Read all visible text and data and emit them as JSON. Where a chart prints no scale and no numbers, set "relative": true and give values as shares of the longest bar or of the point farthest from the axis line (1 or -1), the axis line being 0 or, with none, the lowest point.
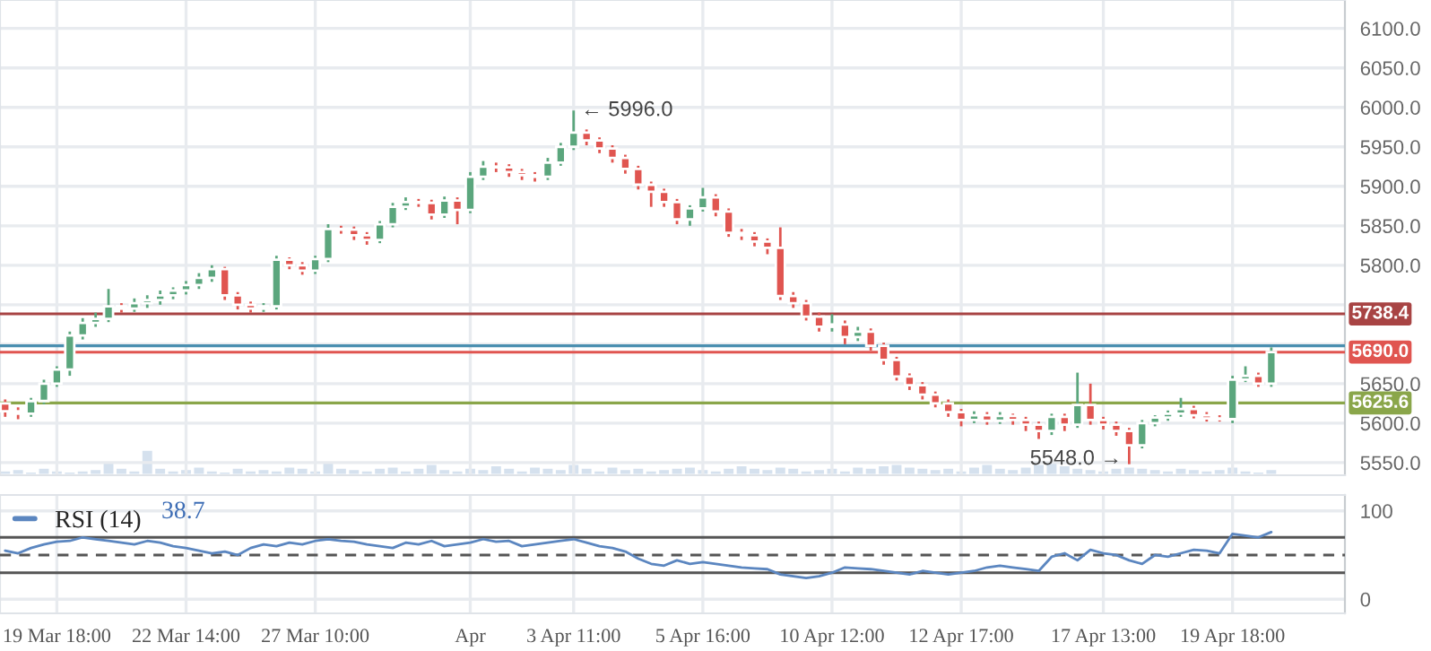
{
  "chart_data": [
    {
      "type": "candlestick",
      "categories": [
        null,
        null,
        null,
        null,
        null,
        null,
        null,
        null,
        null,
        null,
        null,
        null,
        null,
        null,
        null,
        null,
        null,
        null,
        null,
        null,
        null,
        null,
        null,
        null,
        null,
        null,
        null,
        null,
        null,
        null,
        null,
        null,
        null,
        null,
        null,
        null,
        null,
        null,
        null,
        null,
        null,
        null,
        null,
        null,
        null,
        null,
        null,
        null,
        null,
        null,
        null,
        null,
        null,
        null,
        null,
        null,
        null,
        null,
        null,
        null,
        null,
        null,
        null,
        null,
        null,
        null,
        null,
        null,
        null,
        null,
        null,
        null,
        null,
        null,
        null,
        null,
        null,
        null,
        null,
        null,
        null,
        null,
        null,
        null,
        null,
        null,
        null,
        null,
        null,
        null,
        null,
        null,
        null,
        null,
        null,
        null,
        null,
        null,
        null
      ],
      "ohlc": [
        [
          5625,
          5630,
          5608,
          5615
        ],
        [
          5615,
          5620,
          5605,
          5612
        ],
        [
          5612,
          5632,
          5608,
          5628
        ],
        [
          5628,
          5655,
          5624,
          5650
        ],
        [
          5650,
          5672,
          5646,
          5668
        ],
        [
          5668,
          5716,
          5660,
          5711
        ],
        [
          5711,
          5733,
          5706,
          5727
        ],
        [
          5727,
          5740,
          5722,
          5732
        ],
        [
          5732,
          5770,
          5728,
          5748
        ],
        [
          5748,
          5752,
          5740,
          5745
        ],
        [
          5745,
          5758,
          5741,
          5752
        ],
        [
          5752,
          5762,
          5746,
          5756
        ],
        [
          5756,
          5768,
          5750,
          5762
        ],
        [
          5762,
          5772,
          5757,
          5768
        ],
        [
          5768,
          5780,
          5763,
          5775
        ],
        [
          5775,
          5790,
          5770,
          5784
        ],
        [
          5784,
          5800,
          5779,
          5795
        ],
        [
          5795,
          5798,
          5756,
          5762
        ],
        [
          5762,
          5766,
          5744,
          5750
        ],
        [
          5750,
          5754,
          5740,
          5745
        ],
        [
          5745,
          5752,
          5741,
          5748
        ],
        [
          5748,
          5812,
          5744,
          5807
        ],
        [
          5807,
          5810,
          5795,
          5800
        ],
        [
          5800,
          5804,
          5788,
          5793
        ],
        [
          5793,
          5812,
          5789,
          5808
        ],
        [
          5808,
          5852,
          5804,
          5846
        ],
        [
          5846,
          5850,
          5840,
          5845
        ],
        [
          5845,
          5849,
          5832,
          5838
        ],
        [
          5838,
          5842,
          5826,
          5832
        ],
        [
          5832,
          5856,
          5828,
          5852
        ],
        [
          5852,
          5879,
          5848,
          5874
        ],
        [
          5874,
          5886,
          5870,
          5880
        ],
        [
          5880,
          5884,
          5874,
          5879
        ],
        [
          5879,
          5883,
          5858,
          5864
        ],
        [
          5864,
          5887,
          5860,
          5882
        ],
        [
          5882,
          5886,
          5852,
          5870
        ],
        [
          5870,
          5918,
          5866,
          5912
        ],
        [
          5912,
          5932,
          5908,
          5925
        ],
        [
          5925,
          5930,
          5918,
          5924
        ],
        [
          5924,
          5928,
          5912,
          5918
        ],
        [
          5918,
          5922,
          5908,
          5914
        ],
        [
          5914,
          5918,
          5906,
          5912
        ],
        [
          5912,
          5936,
          5908,
          5930
        ],
        [
          5930,
          5955,
          5926,
          5950
        ],
        [
          5950,
          5996,
          5946,
          5968
        ],
        [
          5968,
          5972,
          5952,
          5958
        ],
        [
          5958,
          5962,
          5942,
          5948
        ],
        [
          5948,
          5952,
          5930,
          5936
        ],
        [
          5936,
          5940,
          5916,
          5922
        ],
        [
          5922,
          5926,
          5896,
          5902
        ],
        [
          5902,
          5906,
          5874,
          5893
        ],
        [
          5893,
          5897,
          5874,
          5880
        ],
        [
          5880,
          5884,
          5852,
          5858
        ],
        [
          5858,
          5876,
          5850,
          5872
        ],
        [
          5872,
          5898,
          5868,
          5886
        ],
        [
          5886,
          5890,
          5862,
          5868
        ],
        [
          5868,
          5872,
          5836,
          5841
        ],
        [
          5841,
          5846,
          5832,
          5838
        ],
        [
          5838,
          5842,
          5824,
          5830
        ],
        [
          5830,
          5834,
          5814,
          5822
        ],
        [
          5822,
          5848,
          5756,
          5761
        ],
        [
          5761,
          5766,
          5746,
          5752
        ],
        [
          5752,
          5756,
          5730,
          5735
        ],
        [
          5735,
          5740,
          5716,
          5722
        ],
        [
          5722,
          5738,
          5716,
          5725
        ],
        [
          5725,
          5730,
          5700,
          5709
        ],
        [
          5709,
          5722,
          5704,
          5716
        ],
        [
          5716,
          5720,
          5692,
          5698
        ],
        [
          5698,
          5702,
          5674,
          5680
        ],
        [
          5680,
          5684,
          5654,
          5659
        ],
        [
          5659,
          5663,
          5642,
          5648
        ],
        [
          5648,
          5652,
          5630,
          5636
        ],
        [
          5636,
          5640,
          5620,
          5625
        ],
        [
          5625,
          5630,
          5608,
          5614
        ],
        [
          5614,
          5618,
          5596,
          5604
        ],
        [
          5604,
          5615,
          5600,
          5610
        ],
        [
          5610,
          5614,
          5598,
          5603
        ],
        [
          5603,
          5614,
          5599,
          5609
        ],
        [
          5609,
          5612,
          5598,
          5604
        ],
        [
          5604,
          5608,
          5590,
          5598
        ],
        [
          5598,
          5602,
          5580,
          5590
        ],
        [
          5590,
          5612,
          5585,
          5608
        ],
        [
          5608,
          5612,
          5590,
          5598
        ],
        [
          5598,
          5664,
          5594,
          5623
        ],
        [
          5623,
          5650,
          5598,
          5604
        ],
        [
          5604,
          5608,
          5592,
          5598
        ],
        [
          5598,
          5602,
          5584,
          5590
        ],
        [
          5590,
          5594,
          5548,
          5572
        ],
        [
          5572,
          5604,
          5568,
          5600
        ],
        [
          5600,
          5610,
          5596,
          5607
        ],
        [
          5607,
          5616,
          5603,
          5612
        ],
        [
          5612,
          5632,
          5608,
          5618
        ],
        [
          5618,
          5622,
          5606,
          5610
        ],
        [
          5610,
          5614,
          5602,
          5606
        ],
        [
          5606,
          5610,
          5602,
          5605
        ],
        [
          5605,
          5660,
          5600,
          5655
        ],
        [
          5655,
          5672,
          5652,
          5660
        ],
        [
          5660,
          5664,
          5646,
          5650
        ],
        [
          5650,
          5696,
          5646,
          5690
        ]
      ],
      "colors": [
        "#e05550",
        "#e05550",
        "#5ba67d",
        "#5ba67d",
        "#5ba67d",
        "#5ba67d",
        "#5ba67d",
        "#5ba67d",
        "#5ba67d",
        "#e05550",
        "#5ba67d",
        "#5ba67d",
        "#5ba67d",
        "#5ba67d",
        "#5ba67d",
        "#5ba67d",
        "#5ba67d",
        "#e05550",
        "#e05550",
        "#e05550",
        "#5ba67d",
        "#5ba67d",
        "#e05550",
        "#e05550",
        "#5ba67d",
        "#5ba67d",
        "#e05550",
        "#e05550",
        "#e05550",
        "#5ba67d",
        "#5ba67d",
        "#5ba67d",
        "#e05550",
        "#e05550",
        "#5ba67d",
        "#e05550",
        "#5ba67d",
        "#5ba67d",
        "#e05550",
        "#e05550",
        "#e05550",
        "#e05550",
        "#5ba67d",
        "#5ba67d",
        "#5ba67d",
        "#e05550",
        "#e05550",
        "#e05550",
        "#e05550",
        "#e05550",
        "#e05550",
        "#e05550",
        "#e05550",
        "#5ba67d",
        "#5ba67d",
        "#e05550",
        "#e05550",
        "#e05550",
        "#e05550",
        "#e05550",
        "#e05550",
        "#e05550",
        "#e05550",
        "#e05550",
        "#5ba67d",
        "#e05550",
        "#5ba67d",
        "#e05550",
        "#e05550",
        "#e05550",
        "#e05550",
        "#e05550",
        "#e05550",
        "#e05550",
        "#e05550",
        "#5ba67d",
        "#e05550",
        "#5ba67d",
        "#e05550",
        "#e05550",
        "#e05550",
        "#5ba67d",
        "#e05550",
        "#5ba67d",
        "#e05550",
        "#e05550",
        "#e05550",
        "#e05550",
        "#5ba67d",
        "#5ba67d",
        "#5ba67d",
        "#5ba67d",
        "#e05550",
        "#e05550",
        "#e05550",
        "#5ba67d",
        "#5ba67d",
        "#e05550",
        "#5ba67d"
      ],
      "ylim": [
        5534,
        6136
      ],
      "yticks": [
        {
          "value": 5550,
          "label": "5550.0"
        },
        {
          "value": 5600,
          "label": "5600.0"
        },
        {
          "value": 5650,
          "label": "5650.0"
        },
        {
          "value": 5700,
          "label": null
        },
        {
          "value": 5750,
          "label": null
        },
        {
          "value": 5800,
          "label": "5800.0"
        },
        {
          "value": 5850,
          "label": "5850.0"
        },
        {
          "value": 5900,
          "label": "5900.0"
        },
        {
          "value": 5950,
          "label": "5950.0"
        },
        {
          "value": 6000,
          "label": "6000.0"
        },
        {
          "value": 6050,
          "label": "6050.0"
        },
        {
          "value": 6100,
          "label": "6100.0"
        }
      ],
      "grid": true,
      "tick_labels": "y",
      "ref_lines": [
        {
          "axis": "y",
          "value": 5738.4,
          "label": "5738.4",
          "color": "#a84444"
        },
        {
          "axis": "y",
          "value": 5698,
          "color": "#4a8fb0"
        },
        {
          "axis": "y",
          "value": 5690.0,
          "label": "5690.0",
          "color": "#e05550"
        },
        {
          "axis": "y",
          "value": 5625.6,
          "label": "5625.6",
          "color": "#8aa64a"
        }
      ],
      "annotations": [
        "← 5996.0",
        "5548.0 →"
      ]
    },
    {
      "type": "bar",
      "relative": true,
      "color": "#d5e1ee",
      "tick_labels": false,
      "categories": [
        null,
        null,
        null,
        null,
        null,
        null,
        null,
        null,
        null,
        null,
        null,
        null,
        null,
        null,
        null,
        null,
        null,
        null,
        null,
        null,
        null,
        null,
        null,
        null,
        null,
        null,
        null,
        null,
        null,
        null,
        null,
        null,
        null,
        null,
        null,
        null,
        null,
        null,
        null,
        null,
        null,
        null,
        null,
        null,
        null,
        null,
        null,
        null,
        null,
        null,
        null,
        null,
        null,
        null,
        null,
        null,
        null,
        null,
        null,
        null,
        null,
        null,
        null,
        null,
        null,
        null,
        null,
        null,
        null,
        null,
        null,
        null,
        null,
        null,
        null,
        null,
        null,
        null,
        null,
        null,
        null,
        null,
        null,
        null,
        null,
        null,
        null,
        null,
        null,
        null,
        null,
        null,
        null,
        null,
        null,
        null,
        null,
        null,
        null
      ],
      "values": [
        0.2,
        0.25,
        0.15,
        0.3,
        0.2,
        0.15,
        0.2,
        0.25,
        0.5,
        0.3,
        0.2,
        1.0,
        0.3,
        0.2,
        0.25,
        0.35,
        0.2,
        0.15,
        0.3,
        0.2,
        0.25,
        0.2,
        0.35,
        0.3,
        0.2,
        0.5,
        0.3,
        0.25,
        0.2,
        0.3,
        0.35,
        0.2,
        0.3,
        0.45,
        0.25,
        0.2,
        0.3,
        0.25,
        0.4,
        0.3,
        0.2,
        0.35,
        0.3,
        0.25,
        0.45,
        0.3,
        0.2,
        0.35,
        0.25,
        0.3,
        0.2,
        0.25,
        0.3,
        0.35,
        0.25,
        0.2,
        0.3,
        0.4,
        0.3,
        0.25,
        0.35,
        0.3,
        0.2,
        0.25,
        0.3,
        0.2,
        0.35,
        0.3,
        0.4,
        0.45,
        0.35,
        0.3,
        0.25,
        0.3,
        0.2,
        0.35,
        0.45,
        0.3,
        0.25,
        0.35,
        0.45,
        0.55,
        0.4,
        0.3,
        0.25,
        0.2,
        0.3,
        0.35,
        0.3,
        0.25,
        0.2,
        0.3,
        0.25,
        0.2,
        0.25,
        0.35,
        0.2,
        0.15,
        0.25
      ]
    },
    {
      "type": "line",
      "categories": [
        null,
        null,
        null,
        null,
        "19 Mar 18:00",
        null,
        null,
        null,
        null,
        null,
        null,
        null,
        null,
        null,
        "22 Mar 14:00",
        null,
        null,
        null,
        null,
        null,
        null,
        null,
        null,
        null,
        "27 Mar 10:00",
        null,
        null,
        null,
        null,
        null,
        null,
        null,
        null,
        null,
        null,
        null,
        "Apr",
        null,
        null,
        null,
        null,
        null,
        null,
        null,
        "3 Apr 11:00",
        null,
        null,
        null,
        null,
        null,
        null,
        null,
        null,
        null,
        "5 Apr 16:00",
        null,
        null,
        null,
        null,
        null,
        null,
        null,
        null,
        null,
        "10 Apr 12:00",
        null,
        null,
        null,
        null,
        null,
        null,
        null,
        null,
        null,
        "12 Apr 17:00",
        null,
        null,
        null,
        null,
        null,
        null,
        null,
        null,
        null,
        null,
        "17 Apr 13:00",
        null,
        null,
        null,
        null,
        null,
        null,
        null,
        null,
        null,
        "19 Apr 18:00",
        null,
        null,
        null
      ],
      "series": [
        {
          "name": "RSI (14)",
          "color": "#5b86c0",
          "values": [
            55,
            52,
            58,
            62,
            65,
            66,
            70,
            68,
            66,
            64,
            62,
            66,
            64,
            60,
            58,
            55,
            52,
            54,
            50,
            58,
            62,
            60,
            64,
            62,
            66,
            68,
            66,
            65,
            62,
            60,
            58,
            64,
            62,
            66,
            60,
            62,
            64,
            68,
            65,
            66,
            60,
            62,
            64,
            66,
            68,
            64,
            60,
            58,
            54,
            46,
            40,
            38,
            44,
            40,
            42,
            40,
            38,
            36,
            35,
            34,
            28,
            26,
            24,
            26,
            30,
            36,
            35,
            34,
            32,
            30,
            28,
            32,
            30,
            28,
            30,
            32,
            36,
            38,
            36,
            34,
            32,
            48,
            52,
            44,
            56,
            52,
            50,
            44,
            40,
            50,
            48,
            52,
            56,
            55,
            52,
            74,
            72,
            70,
            76
          ]
        }
      ],
      "ylim": [
        -16,
        118
      ],
      "yticks": [
        0,
        100
      ],
      "grid": true,
      "legend": "top left",
      "ref_lines": [
        {
          "axis": "y",
          "value": 70,
          "color": "#555555",
          "line_style": "solid"
        },
        {
          "axis": "y",
          "value": 50,
          "color": "#555555",
          "line_style": "dashed"
        },
        {
          "axis": "y",
          "value": 30,
          "color": "#555555",
          "line_style": "solid"
        }
      ],
      "annotations": [
        "38.7"
      ]
    }
  ]
}
